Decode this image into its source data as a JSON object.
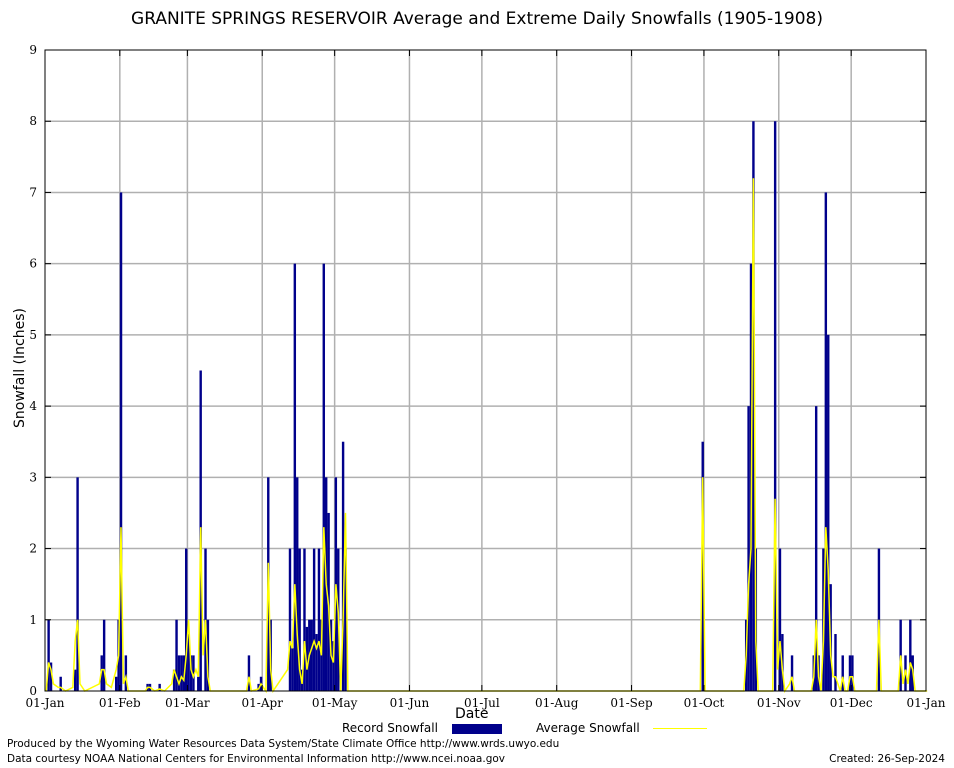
{
  "chart_data": {
    "type": "bar",
    "title": "GRANITE SPRINGS RESERVOIR Average and Extreme Daily Snowfalls (1905-1908)",
    "xlabel": "Date",
    "ylabel": "Snowfall (Inches)",
    "ylim": [
      0,
      9
    ],
    "y_ticks": [
      0,
      1,
      2,
      3,
      4,
      5,
      6,
      7,
      8,
      9
    ],
    "xlim_days": [
      0,
      365
    ],
    "x_tick_labels": [
      "01-Jan",
      "01-Feb",
      "01-Mar",
      "01-Apr",
      "01-May",
      "01-Jun",
      "01-Jul",
      "01-Aug",
      "01-Sep",
      "01-Oct",
      "01-Nov",
      "01-Dec",
      "01-Jan"
    ],
    "x_tick_days": [
      0,
      31,
      59,
      90,
      120,
      151,
      181,
      212,
      243,
      273,
      304,
      334,
      365
    ],
    "grid": true,
    "legend_position": "bottom",
    "colors": {
      "record": "#00008b",
      "average": "#ffff00",
      "grid": "#b0b0b0"
    },
    "series": [
      {
        "name": "Record Snowfall",
        "kind": "bar",
        "points": [
          [
            1,
            1.0
          ],
          [
            2,
            0.4
          ],
          [
            6,
            0.2
          ],
          [
            12,
            0.3
          ],
          [
            13,
            3.0
          ],
          [
            23,
            0.5
          ],
          [
            24,
            1.0
          ],
          [
            29,
            0.2
          ],
          [
            30,
            1.0
          ],
          [
            31,
            7.0
          ],
          [
            33,
            0.5
          ],
          [
            42,
            0.1
          ],
          [
            43,
            0.1
          ],
          [
            47,
            0.1
          ],
          [
            53,
            0.3
          ],
          [
            54,
            1.0
          ],
          [
            55,
            0.5
          ],
          [
            56,
            0.5
          ],
          [
            57,
            0.5
          ],
          [
            58,
            2.0
          ],
          [
            59,
            0.8
          ],
          [
            60,
            0.5
          ],
          [
            61,
            0.5
          ],
          [
            63,
            0.2
          ],
          [
            64,
            4.5
          ],
          [
            66,
            2.0
          ],
          [
            67,
            1.0
          ],
          [
            84,
            0.5
          ],
          [
            88,
            0.1
          ],
          [
            89,
            0.2
          ],
          [
            92,
            3.0
          ],
          [
            93,
            1.0
          ],
          [
            101,
            2.0
          ],
          [
            102,
            0.6
          ],
          [
            103,
            6.0
          ],
          [
            104,
            3.0
          ],
          [
            105,
            2.0
          ],
          [
            106,
            0.3
          ],
          [
            107,
            2.0
          ],
          [
            108,
            0.9
          ],
          [
            109,
            1.0
          ],
          [
            110,
            1.0
          ],
          [
            111,
            2.0
          ],
          [
            112,
            0.8
          ],
          [
            113,
            2.0
          ],
          [
            114,
            1.0
          ],
          [
            115,
            6.0
          ],
          [
            116,
            3.0
          ],
          [
            117,
            2.5
          ],
          [
            118,
            1.0
          ],
          [
            119,
            0.7
          ],
          [
            120,
            3.0
          ],
          [
            121,
            2.0
          ],
          [
            123,
            3.5
          ],
          [
            124,
            2.0
          ],
          [
            272,
            3.5
          ],
          [
            290,
            1.0
          ],
          [
            291,
            4.0
          ],
          [
            292,
            6.0
          ],
          [
            293,
            8.0
          ],
          [
            294,
            2.0
          ],
          [
            302,
            8.0
          ],
          [
            304,
            2.0
          ],
          [
            305,
            0.8
          ],
          [
            309,
            0.5
          ],
          [
            318,
            0.5
          ],
          [
            319,
            4.0
          ],
          [
            320,
            0.5
          ],
          [
            322,
            2.0
          ],
          [
            323,
            7.0
          ],
          [
            324,
            5.0
          ],
          [
            325,
            1.5
          ],
          [
            327,
            0.8
          ],
          [
            330,
            0.5
          ],
          [
            333,
            0.5
          ],
          [
            334,
            0.5
          ],
          [
            345,
            2.0
          ],
          [
            354,
            1.0
          ],
          [
            356,
            0.5
          ],
          [
            358,
            1.0
          ],
          [
            359,
            0.5
          ]
        ]
      },
      {
        "name": "Average Snowfall",
        "kind": "line",
        "points": [
          [
            0,
            0.0
          ],
          [
            1,
            0.4
          ],
          [
            2,
            0.3
          ],
          [
            3,
            0.1
          ],
          [
            5,
            0.05
          ],
          [
            6,
            0.05
          ],
          [
            8,
            0.0
          ],
          [
            11,
            0.05
          ],
          [
            12,
            0.7
          ],
          [
            13,
            1.0
          ],
          [
            14,
            0.1
          ],
          [
            16,
            0.0
          ],
          [
            22,
            0.1
          ],
          [
            23,
            0.3
          ],
          [
            24,
            0.3
          ],
          [
            25,
            0.1
          ],
          [
            27,
            0.05
          ],
          [
            29,
            0.3
          ],
          [
            30,
            0.5
          ],
          [
            31,
            2.3
          ],
          [
            32,
            0.1
          ],
          [
            33,
            0.2
          ],
          [
            34,
            0.0
          ],
          [
            41,
            0.0
          ],
          [
            42,
            0.05
          ],
          [
            43,
            0.05
          ],
          [
            45,
            0.0
          ],
          [
            47,
            0.03
          ],
          [
            49,
            0.0
          ],
          [
            52,
            0.1
          ],
          [
            53,
            0.3
          ],
          [
            54,
            0.2
          ],
          [
            55,
            0.1
          ],
          [
            56,
            0.2
          ],
          [
            57,
            0.15
          ],
          [
            58,
            0.5
          ],
          [
            59,
            1.0
          ],
          [
            60,
            0.3
          ],
          [
            61,
            0.2
          ],
          [
            62,
            0.3
          ],
          [
            63,
            0.2
          ],
          [
            64,
            2.3
          ],
          [
            65,
            0.5
          ],
          [
            66,
            1.0
          ],
          [
            67,
            0.2
          ],
          [
            68,
            0.0
          ],
          [
            83,
            0.0
          ],
          [
            84,
            0.2
          ],
          [
            85,
            0.0
          ],
          [
            88,
            0.03
          ],
          [
            89,
            0.1
          ],
          [
            90,
            0.05
          ],
          [
            91,
            0.0
          ],
          [
            92,
            1.8
          ],
          [
            93,
            0.3
          ],
          [
            94,
            0.0
          ],
          [
            100,
            0.3
          ],
          [
            101,
            0.7
          ],
          [
            102,
            0.6
          ],
          [
            103,
            1.5
          ],
          [
            104,
            0.8
          ],
          [
            105,
            0.3
          ],
          [
            106,
            0.1
          ],
          [
            107,
            0.7
          ],
          [
            108,
            0.3
          ],
          [
            109,
            0.5
          ],
          [
            110,
            0.6
          ],
          [
            111,
            0.7
          ],
          [
            112,
            0.6
          ],
          [
            113,
            0.7
          ],
          [
            114,
            0.5
          ],
          [
            115,
            2.3
          ],
          [
            116,
            1.5
          ],
          [
            117,
            1.2
          ],
          [
            118,
            0.5
          ],
          [
            119,
            0.4
          ],
          [
            120,
            1.5
          ],
          [
            121,
            1.1
          ],
          [
            122,
            0.0
          ],
          [
            123,
            1.0
          ],
          [
            124,
            2.5
          ],
          [
            125,
            0.0
          ],
          [
            271,
            0.0
          ],
          [
            272,
            3.0
          ],
          [
            273,
            0.0
          ],
          [
            289,
            0.0
          ],
          [
            290,
            0.5
          ],
          [
            291,
            1.5
          ],
          [
            292,
            2.0
          ],
          [
            293,
            7.2
          ],
          [
            294,
            0.7
          ],
          [
            295,
            0.0
          ],
          [
            301,
            0.0
          ],
          [
            302,
            2.7
          ],
          [
            303,
            0.3
          ],
          [
            304,
            0.7
          ],
          [
            305,
            0.3
          ],
          [
            306,
            0.0
          ],
          [
            308,
            0.1
          ],
          [
            309,
            0.2
          ],
          [
            310,
            0.0
          ],
          [
            317,
            0.0
          ],
          [
            318,
            0.2
          ],
          [
            319,
            1.0
          ],
          [
            320,
            0.2
          ],
          [
            321,
            0.0
          ],
          [
            322,
            0.7
          ],
          [
            323,
            2.3
          ],
          [
            324,
            1.7
          ],
          [
            325,
            0.5
          ],
          [
            326,
            0.2
          ],
          [
            327,
            0.2
          ],
          [
            328,
            0.1
          ],
          [
            329,
            0.0
          ],
          [
            330,
            0.2
          ],
          [
            331,
            0.0
          ],
          [
            332,
            0.0
          ],
          [
            333,
            0.2
          ],
          [
            334,
            0.2
          ],
          [
            335,
            0.0
          ],
          [
            344,
            0.0
          ],
          [
            345,
            1.0
          ],
          [
            346,
            0.0
          ],
          [
            353,
            0.0
          ],
          [
            354,
            0.5
          ],
          [
            355,
            0.1
          ],
          [
            356,
            0.3
          ],
          [
            357,
            0.1
          ],
          [
            358,
            0.4
          ],
          [
            359,
            0.3
          ],
          [
            360,
            0.0
          ],
          [
            365,
            0.0
          ]
        ]
      }
    ]
  },
  "footer": {
    "produced_by": "Produced by the Wyoming Water Resources Data System/State Climate Office http://www.wrds.uwyo.edu",
    "courtesy": "Data courtesy NOAA National Centers for Environmental Information http://www.ncei.noaa.gov",
    "created": "Created:  26-Sep-2024"
  }
}
